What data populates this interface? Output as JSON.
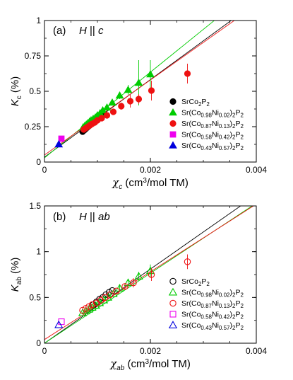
{
  "chart_data": [
    {
      "type": "scatter",
      "panel_label": "(a)",
      "condition_html": "<tspan font-style='italic'>H</tspan> || <tspan font-style='italic'>c</tspan>",
      "xlabel_html": "<tspan font-style='italic' font-family='DejaVu Serif, serif'>χ</tspan><tspan font-style='italic' font-size='10' dy='4'>c</tspan><tspan dy='-4'> (cm</tspan><tspan font-size='10' dy='-5'>3</tspan><tspan dy='5'>/mol TM)</tspan>",
      "ylabel_html": "<tspan font-style='italic'>K</tspan><tspan font-size='10' dy='4'>c</tspan><tspan dy='-4'>  (%)</tspan>",
      "xlim": [
        0,
        0.004
      ],
      "ylim": [
        0,
        1
      ],
      "x_ticks": [
        0,
        0.002,
        0.004
      ],
      "x_tick_labels": [
        "0",
        "0.002",
        "0.004"
      ],
      "y_ticks": [
        0,
        0.25,
        0.5,
        0.75,
        1
      ],
      "y_tick_labels": [
        "0",
        "0.25",
        "0.5",
        "0.75",
        "1"
      ],
      "x_minor_step": 0.0005,
      "y_minor_step": 0.125,
      "legend_position": "right",
      "filled": true,
      "series": [
        {
          "name_html": "SrCo<tspan font-size='8' dy='3'>2</tspan><tspan dy='-3'>P</tspan><tspan font-size='8' dy='3'>2</tspan>",
          "marker": "circle",
          "color": "#000000",
          "x": [
            0.00072,
            0.00075,
            0.00078,
            0.00081,
            0.00084,
            0.00087,
            0.0009,
            0.00093,
            0.00097,
            0.001,
            0.00104,
            0.00108
          ],
          "y": [
            0.215,
            0.225,
            0.235,
            0.245,
            0.255,
            0.265,
            0.275,
            0.285,
            0.295,
            0.305,
            0.315,
            0.325
          ],
          "err": []
        },
        {
          "name_html": "Sr(Co<tspan font-size='8' dy='3'>0.98</tspan><tspan dy='-3'>Ni</tspan><tspan font-size='8' dy='3'>0.02</tspan><tspan dy='-3'>)</tspan><tspan font-size='8' dy='3'>2</tspan><tspan dy='-3'>P</tspan><tspan font-size='8' dy='3'>2</tspan>",
          "marker": "triangle-up",
          "color": "#00cc00",
          "x": [
            0.00073,
            0.00076,
            0.00079,
            0.00082,
            0.00085,
            0.00088,
            0.00092,
            0.00096,
            0.001,
            0.00105,
            0.0011,
            0.00118,
            0.00128,
            0.00142,
            0.00158,
            0.00178,
            0.002
          ],
          "y": [
            0.245,
            0.255,
            0.265,
            0.275,
            0.285,
            0.295,
            0.305,
            0.315,
            0.33,
            0.345,
            0.365,
            0.385,
            0.42,
            0.47,
            0.51,
            0.56,
            0.62
          ],
          "err": [
            0,
            0,
            0,
            0,
            0,
            0,
            0,
            0,
            0,
            0,
            0,
            0,
            0.02,
            0.025,
            0.035,
            0.16,
            0.1
          ]
        },
        {
          "name_html": "Sr(Co<tspan font-size='8' dy='3'>0.87</tspan><tspan dy='-3'>Ni</tspan><tspan font-size='8' dy='3'>0.13</tspan><tspan dy='-3'>)</tspan><tspan font-size='8' dy='3'>2</tspan><tspan dy='-3'>P</tspan><tspan font-size='8' dy='3'>2</tspan>",
          "marker": "circle",
          "color": "#ee1111",
          "x": [
            0.00074,
            0.00078,
            0.00082,
            0.00086,
            0.0009,
            0.00095,
            0.001,
            0.00108,
            0.00118,
            0.0013,
            0.00145,
            0.00162,
            0.00178,
            0.00202,
            0.0027
          ],
          "y": [
            0.23,
            0.24,
            0.25,
            0.26,
            0.27,
            0.28,
            0.295,
            0.31,
            0.33,
            0.355,
            0.395,
            0.43,
            0.445,
            0.505,
            0.625
          ],
          "err": [
            0,
            0,
            0,
            0,
            0,
            0,
            0,
            0,
            0,
            0.015,
            0.025,
            0.045,
            0.035,
            0.07,
            0.07
          ]
        },
        {
          "name_html": "Sr(Co<tspan font-size='8' dy='3'>0.58</tspan><tspan dy='-3'>Ni</tspan><tspan font-size='8' dy='3'>0.42</tspan><tspan dy='-3'>)</tspan><tspan font-size='8' dy='3'>2</tspan><tspan dy='-3'>P</tspan><tspan font-size='8' dy='3'>2</tspan>",
          "marker": "square",
          "color": "#ee00ee",
          "x": [
            0.00032
          ],
          "y": [
            0.165
          ],
          "err": []
        },
        {
          "name_html": "Sr(Co<tspan font-size='8' dy='3'>0.43</tspan><tspan dy='-3'>Ni</tspan><tspan font-size='8' dy='3'>0.57</tspan><tspan dy='-3'>)</tspan><tspan font-size='8' dy='3'>2</tspan><tspan dy='-3'>P</tspan><tspan font-size='8' dy='3'>2</tspan>",
          "marker": "triangle-up",
          "color": "#0000dd",
          "x": [
            0.00027
          ],
          "y": [
            0.125
          ],
          "err": []
        }
      ],
      "fit_lines": [
        {
          "color": "#000000",
          "x": [
            0,
            0.004
          ],
          "y": [
            0.035,
            1.13
          ]
        },
        {
          "color": "#00cc00",
          "x": [
            0,
            0.004
          ],
          "y": [
            0.03,
            1.24
          ]
        },
        {
          "color": "#ee1111",
          "x": [
            0,
            0.004
          ],
          "y": [
            0.05,
            1.11
          ]
        }
      ]
    },
    {
      "type": "scatter",
      "panel_label": "(b)",
      "condition_html": "<tspan font-style='italic'>H</tspan> || <tspan font-style='italic'>ab</tspan>",
      "xlabel_html": "<tspan font-style='italic' font-family='DejaVu Serif, serif'>χ</tspan><tspan font-style='italic' font-size='10' dy='4'>ab</tspan><tspan dy='-4'> (cm</tspan><tspan font-size='10' dy='-5'>3</tspan><tspan dy='5'>/mol TM)</tspan>",
      "ylabel_html": "<tspan font-style='italic'>K</tspan><tspan font-size='10' dy='4'>ab</tspan><tspan dy='-4'>  (%)</tspan>",
      "xlim": [
        0,
        0.004
      ],
      "ylim": [
        0,
        1.5
      ],
      "x_ticks": [
        0,
        0.002,
        0.004
      ],
      "x_tick_labels": [
        "0",
        "0.002",
        "0.004"
      ],
      "y_ticks": [
        0,
        0.5,
        1,
        1.5
      ],
      "y_tick_labels": [
        "0",
        "0.5",
        "1",
        "1.5"
      ],
      "x_minor_step": 0.0005,
      "y_minor_step": 0.25,
      "legend_position": "bottom-right",
      "filled": false,
      "series": [
        {
          "name_html": "SrCo<tspan font-size='8' dy='3'>2</tspan><tspan dy='-3'>P</tspan><tspan font-size='8' dy='3'>2</tspan>",
          "marker": "circle",
          "color": "#000000",
          "x": [
            0.00092,
            0.00098,
            0.00104,
            0.0011,
            0.00116,
            0.00122,
            0.00128
          ],
          "y": [
            0.42,
            0.45,
            0.48,
            0.5,
            0.53,
            0.555,
            0.575
          ],
          "err": []
        },
        {
          "name_html": "Sr(Co<tspan font-size='8' dy='3'>0.98</tspan><tspan dy='-3'>Ni</tspan><tspan font-size='8' dy='3'>0.02</tspan><tspan dy='-3'>)</tspan><tspan font-size='8' dy='3'>2</tspan><tspan dy='-3'>P</tspan><tspan font-size='8' dy='3'>2</tspan>",
          "marker": "triangle-up",
          "color": "#00cc00",
          "x": [
            0.00072,
            0.00078,
            0.00084,
            0.0009,
            0.00097,
            0.00104,
            0.00112,
            0.0012,
            0.0013,
            0.00142,
            0.00158,
            0.00178,
            0.002
          ],
          "y": [
            0.33,
            0.35,
            0.37,
            0.39,
            0.41,
            0.44,
            0.47,
            0.5,
            0.54,
            0.6,
            0.66,
            0.73,
            0.79
          ],
          "err": [
            0,
            0,
            0,
            0,
            0,
            0,
            0,
            0,
            0,
            0.03,
            0.04,
            0.05,
            0.07
          ]
        },
        {
          "name_html": "Sr(Co<tspan font-size='8' dy='3'>0.87</tspan><tspan dy='-3'>Ni</tspan><tspan font-size='8' dy='3'>0.13</tspan><tspan dy='-3'>)</tspan><tspan font-size='8' dy='3'>2</tspan><tspan dy='-3'>P</tspan><tspan font-size='8' dy='3'>2</tspan>",
          "marker": "circle",
          "color": "#ee1111",
          "x": [
            0.00072,
            0.00078,
            0.00084,
            0.0009,
            0.00098,
            0.00106,
            0.00114,
            0.00124,
            0.00136,
            0.00152,
            0.00168,
            0.00202,
            0.0027
          ],
          "y": [
            0.36,
            0.38,
            0.4,
            0.42,
            0.44,
            0.47,
            0.5,
            0.53,
            0.57,
            0.62,
            0.66,
            0.75,
            0.89
          ],
          "err": [
            0,
            0,
            0,
            0,
            0,
            0,
            0,
            0,
            0,
            0.03,
            0.05,
            0.07,
            0.08
          ]
        },
        {
          "name_html": "Sr(Co<tspan font-size='8' dy='3'>0.58</tspan><tspan dy='-3'>Ni</tspan><tspan font-size='8' dy='3'>0.42</tspan><tspan dy='-3'>)</tspan><tspan font-size='8' dy='3'>2</tspan><tspan dy='-3'>P</tspan><tspan font-size='8' dy='3'>2</tspan>",
          "marker": "square",
          "color": "#ee00ee",
          "x": [
            0.00032
          ],
          "y": [
            0.235
          ],
          "err": []
        },
        {
          "name_html": "Sr(Co<tspan font-size='8' dy='3'>0.43</tspan><tspan dy='-3'>Ni</tspan><tspan font-size='8' dy='3'>0.57</tspan><tspan dy='-3'>)</tspan><tspan font-size='8' dy='3'>2</tspan><tspan dy='-3'>P</tspan><tspan font-size='8' dy='3'>2</tspan>",
          "marker": "triangle-up",
          "color": "#0000dd",
          "x": [
            0.00027
          ],
          "y": [
            0.2
          ],
          "err": []
        }
      ],
      "fit_lines": [
        {
          "color": "#000000",
          "x": [
            0,
            0.004
          ],
          "y": [
            0.0,
            1.62
          ]
        },
        {
          "color": "#00cc00",
          "x": [
            0,
            0.004
          ],
          "y": [
            0.0,
            1.53
          ]
        },
        {
          "color": "#ee1111",
          "x": [
            0,
            0.004
          ],
          "y": [
            0.04,
            1.52
          ]
        }
      ]
    }
  ]
}
